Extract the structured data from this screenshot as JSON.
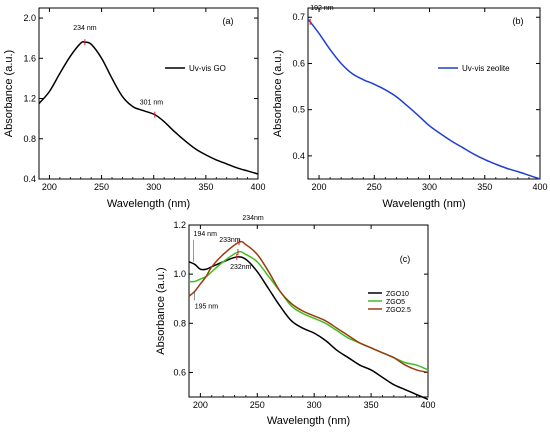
{
  "chart_data": [
    {
      "type": "line",
      "panel_label": "(a)",
      "xlabel": "Wavelength (nm)",
      "ylabel": "Absorbance (a.u.)",
      "xlim": [
        190,
        400
      ],
      "ylim": [
        0.4,
        2.1
      ],
      "xticks": [
        200,
        250,
        300,
        350,
        400
      ],
      "yticks": [
        0.4,
        0.8,
        1.2,
        1.6,
        2.0
      ],
      "ytick_labels": [
        "0.4",
        "0.8",
        "1.2",
        "1.6",
        "2.0"
      ],
      "grid": false,
      "legend": "right",
      "series": [
        {
          "name": "Uv-vis GO",
          "color": "#000000",
          "x": [
            190,
            200,
            210,
            220,
            230,
            234,
            240,
            250,
            260,
            270,
            280,
            290,
            301,
            310,
            320,
            330,
            340,
            350,
            360,
            370,
            380,
            390,
            400
          ],
          "y": [
            1.15,
            1.27,
            1.45,
            1.62,
            1.75,
            1.76,
            1.74,
            1.6,
            1.4,
            1.22,
            1.12,
            1.08,
            1.04,
            0.97,
            0.87,
            0.78,
            0.7,
            0.64,
            0.59,
            0.55,
            0.51,
            0.48,
            0.45
          ]
        }
      ],
      "annotations": [
        {
          "text": "234 nm",
          "x": 234,
          "y": 1.76
        },
        {
          "text": "301 nm",
          "x": 301,
          "y": 1.04
        }
      ]
    },
    {
      "type": "line",
      "panel_label": "(b)",
      "xlabel": "Wavelength (nm)",
      "ylabel": "Absorbance (a.u.)",
      "xlim": [
        190,
        400
      ],
      "ylim": [
        0.35,
        0.72
      ],
      "xticks": [
        200,
        250,
        300,
        350,
        400
      ],
      "yticks": [
        0.4,
        0.5,
        0.6,
        0.7
      ],
      "ytick_labels": [
        "0.4",
        "0.5",
        "0.6",
        "0.7"
      ],
      "grid": false,
      "legend": "right",
      "series": [
        {
          "name": "Uv-vis zeolite",
          "color": "#1f3fd0",
          "x": [
            190,
            192,
            200,
            210,
            220,
            230,
            240,
            250,
            260,
            270,
            280,
            290,
            300,
            310,
            320,
            330,
            340,
            350,
            360,
            370,
            380,
            390,
            400
          ],
          "y": [
            0.695,
            0.69,
            0.665,
            0.63,
            0.6,
            0.578,
            0.565,
            0.555,
            0.543,
            0.528,
            0.508,
            0.487,
            0.465,
            0.448,
            0.432,
            0.418,
            0.404,
            0.392,
            0.382,
            0.373,
            0.366,
            0.358,
            0.35
          ]
        }
      ],
      "annotations": [
        {
          "text": "192 nm",
          "x": 192,
          "y": 0.69
        }
      ]
    },
    {
      "type": "line",
      "panel_label": "(c)",
      "xlabel": "Wavelength (nm)",
      "ylabel": "Absorbance (a.u.)",
      "xlim": [
        190,
        400
      ],
      "ylim": [
        0.5,
        1.2
      ],
      "xticks": [
        200,
        250,
        300,
        350,
        400
      ],
      "yticks": [
        0.6,
        0.8,
        1.0,
        1.2
      ],
      "ytick_labels": [
        "0.6",
        "0.8",
        "1.0",
        "1.2"
      ],
      "grid": false,
      "legend": "right",
      "series": [
        {
          "name": "ZGO10",
          "color": "#000000",
          "x": [
            190,
            195,
            200,
            205,
            210,
            220,
            232,
            240,
            250,
            260,
            270,
            280,
            290,
            300,
            310,
            320,
            330,
            340,
            350,
            360,
            370,
            380,
            390,
            400
          ],
          "y": [
            1.05,
            1.04,
            1.02,
            1.02,
            1.03,
            1.05,
            1.07,
            1.06,
            1.01,
            0.94,
            0.87,
            0.81,
            0.78,
            0.76,
            0.73,
            0.69,
            0.66,
            0.63,
            0.61,
            0.58,
            0.55,
            0.53,
            0.51,
            0.49
          ]
        },
        {
          "name": "ZGO5",
          "color": "#3fbf1f",
          "x": [
            190,
            195,
            200,
            205,
            210,
            220,
            233,
            240,
            250,
            260,
            270,
            280,
            290,
            300,
            310,
            320,
            330,
            340,
            350,
            360,
            370,
            380,
            390,
            400
          ],
          "y": [
            0.97,
            0.97,
            0.98,
            0.99,
            1.01,
            1.05,
            1.09,
            1.08,
            1.05,
            0.99,
            0.93,
            0.87,
            0.84,
            0.82,
            0.8,
            0.77,
            0.74,
            0.72,
            0.7,
            0.68,
            0.66,
            0.64,
            0.63,
            0.61
          ]
        },
        {
          "name": "ZGO2.5",
          "color": "#9a3b12",
          "x": [
            190,
            195,
            200,
            205,
            210,
            220,
            234,
            240,
            250,
            260,
            270,
            280,
            290,
            300,
            310,
            320,
            330,
            340,
            350,
            360,
            370,
            380,
            390,
            400
          ],
          "y": [
            0.91,
            0.93,
            0.96,
            0.99,
            1.03,
            1.08,
            1.13,
            1.12,
            1.08,
            1.01,
            0.93,
            0.88,
            0.85,
            0.83,
            0.81,
            0.78,
            0.75,
            0.72,
            0.7,
            0.68,
            0.66,
            0.63,
            0.61,
            0.6
          ]
        }
      ],
      "annotations": [
        {
          "text": "194 nm",
          "x": 194,
          "y": 1.05
        },
        {
          "text": "195 nm",
          "x": 195,
          "y": 0.93
        },
        {
          "text": "233nm",
          "x": 233,
          "y": 1.09
        },
        {
          "text": "234nm",
          "x": 234,
          "y": 1.13
        },
        {
          "text": "232nm",
          "x": 232,
          "y": 1.07
        }
      ]
    }
  ]
}
